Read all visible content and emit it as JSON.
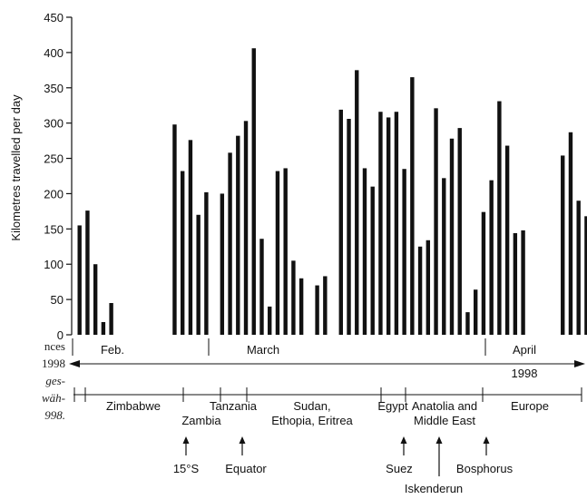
{
  "chart_data": {
    "type": "bar",
    "ylabel": "Kilometres travelled per day",
    "ylim": [
      0,
      450
    ],
    "yticks": [
      0,
      50,
      100,
      150,
      200,
      250,
      300,
      350,
      400,
      450
    ],
    "values": [
      155,
      176,
      100,
      18,
      45,
      0,
      0,
      0,
      0,
      0,
      0,
      0,
      298,
      232,
      276,
      170,
      202,
      0,
      200,
      258,
      282,
      303,
      406,
      136,
      40,
      232,
      236,
      105,
      80,
      0,
      70,
      83,
      0,
      319,
      306,
      375,
      236,
      210,
      316,
      308,
      316,
      235,
      365,
      125,
      134,
      321,
      222,
      278,
      293,
      32,
      64,
      174,
      219,
      331,
      268,
      144,
      148,
      0,
      0,
      0,
      0,
      254,
      287,
      190,
      168
    ],
    "colors": {
      "bar": "#111111",
      "axis": "#111111"
    },
    "months": [
      {
        "label": "Feb."
      },
      {
        "label": "March"
      },
      {
        "label": "April"
      }
    ],
    "year_label": "1998",
    "regions": [
      {
        "label": "Zimbabwe"
      },
      {
        "label": "Zambia"
      },
      {
        "label": "Tanzania"
      },
      {
        "label": "Sudan,"
      },
      {
        "label": "Ethopia, Eritrea"
      },
      {
        "label": "Egypt"
      },
      {
        "label": "Anatolia and"
      },
      {
        "label": "Middle East"
      },
      {
        "label": "Europe"
      }
    ],
    "annotations": [
      {
        "label": "15°S"
      },
      {
        "label": "Equator"
      },
      {
        "label": "Suez"
      },
      {
        "label": "Iskenderun"
      },
      {
        "label": "Bosphorus"
      }
    ]
  },
  "caption_fragments": [
    "nces",
    "1998",
    "ges-",
    "wäh-",
    "998."
  ]
}
